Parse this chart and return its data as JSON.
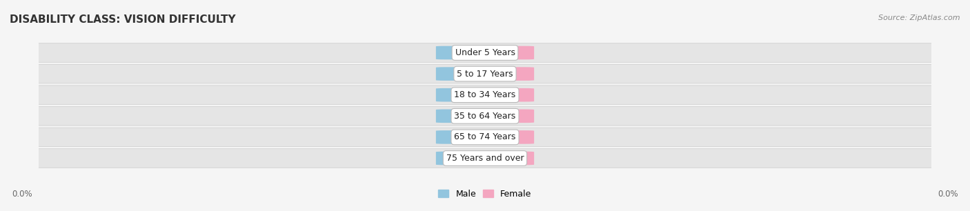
{
  "title": "DISABILITY CLASS: VISION DIFFICULTY",
  "source_text": "Source: ZipAtlas.com",
  "categories": [
    "Under 5 Years",
    "5 to 17 Years",
    "18 to 34 Years",
    "35 to 64 Years",
    "65 to 74 Years",
    "75 Years and over"
  ],
  "male_values": [
    0.0,
    0.0,
    0.0,
    0.0,
    0.0,
    0.0
  ],
  "female_values": [
    0.0,
    0.0,
    0.0,
    0.0,
    0.0,
    0.0
  ],
  "male_color": "#92c5de",
  "female_color": "#f4a6c0",
  "row_bg_color": "#e8e8e8",
  "title_fontsize": 11,
  "label_fontsize": 9,
  "value_fontsize": 8.5,
  "background_color": "#f5f5f5",
  "left_label": "0.0%",
  "right_label": "0.0%"
}
